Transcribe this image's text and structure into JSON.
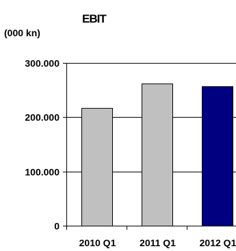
{
  "chart_data": {
    "type": "bar",
    "title": "EBIT",
    "unit_label": "(000 kn)",
    "xlabel": "",
    "ylabel": "",
    "categories": [
      "2010 Q1",
      "2011 Q1",
      "2012 Q1"
    ],
    "values": [
      217000,
      262000,
      257000
    ],
    "bar_colors": [
      "#c0c0c0",
      "#c0c0c0",
      "#000080"
    ],
    "bar_outline": "#000000",
    "ylim": [
      0,
      300000
    ],
    "yticks": [
      0,
      100000,
      200000,
      300000
    ],
    "ytick_labels": [
      "0",
      "100.000",
      "200.000",
      "300.000"
    ],
    "grid": true,
    "grid_color": "#000000",
    "legend": "none"
  }
}
